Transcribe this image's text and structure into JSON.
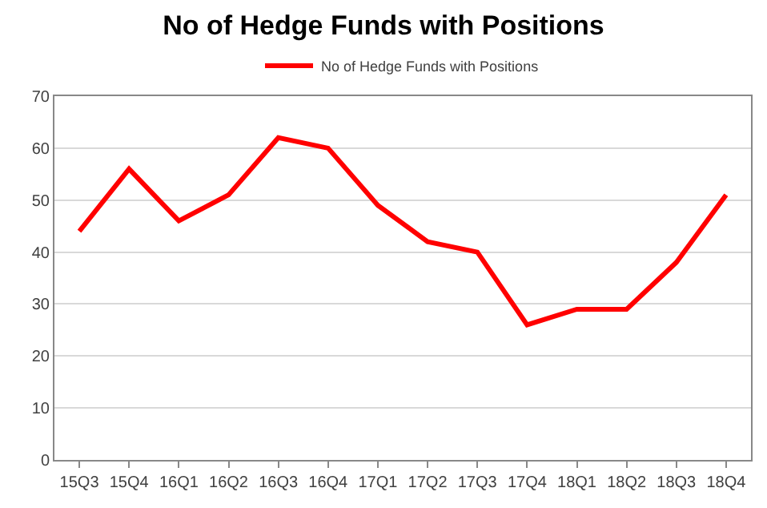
{
  "chart_data": {
    "type": "line",
    "title": "No of Hedge Funds with Positions",
    "categories": [
      "15Q3",
      "15Q4",
      "16Q1",
      "16Q2",
      "16Q3",
      "16Q4",
      "17Q1",
      "17Q2",
      "17Q3",
      "17Q4",
      "18Q1",
      "18Q2",
      "18Q3",
      "18Q4"
    ],
    "series": [
      {
        "name": "No of Hedge Funds with Positions",
        "color": "#ff0000",
        "values": [
          44,
          56,
          46,
          51,
          62,
          60,
          49,
          42,
          40,
          26,
          29,
          29,
          38,
          51
        ]
      }
    ],
    "ylim": [
      0,
      70
    ],
    "yticks": [
      0,
      10,
      20,
      30,
      40,
      50,
      60,
      70
    ],
    "grid": "y",
    "legend": "top",
    "marker": "none",
    "line_style": "solid"
  }
}
